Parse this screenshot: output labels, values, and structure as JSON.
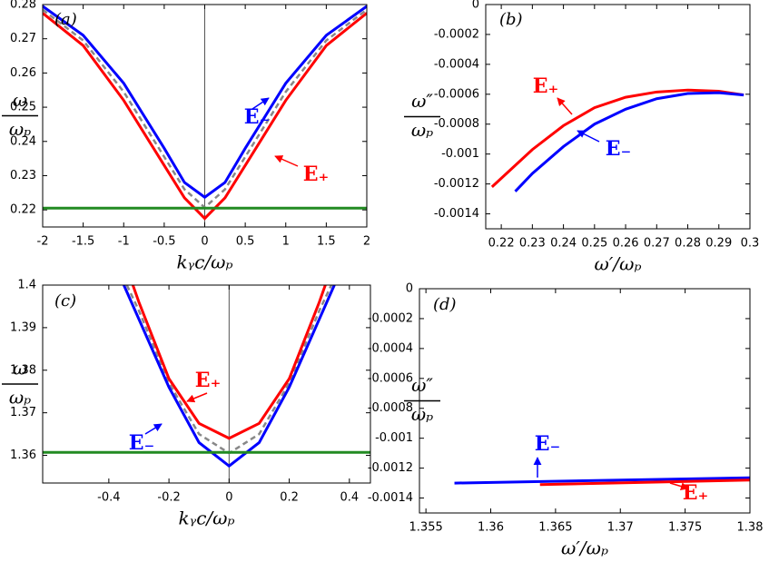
{
  "chart_data": [
    {
      "type": "line",
      "panel_label": "(a)",
      "xlabel": "kᵧc/ωₚ",
      "ylabel": {
        "numerator": "ω",
        "denominator": "ωₚ"
      },
      "xlim": [
        -2,
        2
      ],
      "ylim": [
        0.215,
        0.28
      ],
      "xticks": [
        -2,
        -1.5,
        -1,
        -0.5,
        0,
        0.5,
        1,
        1.5,
        2
      ],
      "yticks": [
        0.22,
        0.23,
        0.24,
        0.25,
        0.26,
        0.27,
        0.28
      ],
      "vline": 0,
      "series": [
        {
          "color": "#888888",
          "dashed": true,
          "x": [
            -2,
            -1.5,
            -1,
            -0.5,
            -0.25,
            0,
            0.25,
            0.5,
            1,
            1.5,
            2
          ],
          "values": [
            0.2785,
            0.2695,
            0.2545,
            0.2355,
            0.226,
            0.2207,
            0.226,
            0.2355,
            0.2545,
            0.2695,
            0.2785
          ]
        },
        {
          "name": "E₋",
          "color": "#0000ff",
          "x": [
            -2,
            -1.5,
            -1,
            -0.5,
            -0.25,
            0,
            0.25,
            0.5,
            1,
            1.5,
            2
          ],
          "values": [
            0.2795,
            0.271,
            0.257,
            0.238,
            0.228,
            0.2237,
            0.228,
            0.238,
            0.257,
            0.271,
            0.2795
          ]
        },
        {
          "name": "E₊",
          "color": "#ff0000",
          "x": [
            -2,
            -1.5,
            -1,
            -0.5,
            -0.25,
            0,
            0.25,
            0.5,
            1,
            1.5,
            2
          ],
          "values": [
            0.2775,
            0.268,
            0.252,
            0.233,
            0.2235,
            0.2175,
            0.2235,
            0.233,
            0.252,
            0.268,
            0.2775
          ]
        },
        {
          "color": "#228b22",
          "x": [
            -2,
            2
          ],
          "values": [
            0.2205,
            0.2205
          ]
        }
      ]
    },
    {
      "type": "line",
      "panel_label": "(b)",
      "xlabel": "ω′/ωₚ",
      "ylabel": {
        "numerator": "ω″",
        "denominator": "ωₚ"
      },
      "xlim": [
        0.215,
        0.3
      ],
      "ylim": [
        -0.0015,
        0
      ],
      "xticks": [
        0.22,
        0.23,
        0.24,
        0.25,
        0.26,
        0.27,
        0.28,
        0.29,
        0.3
      ],
      "yticks": [
        -0.0014,
        -0.0012,
        -0.001,
        -0.0008,
        -0.0006,
        -0.0004,
        -0.0002,
        0
      ],
      "series": [
        {
          "name": "E₊",
          "color": "#ff0000",
          "x": [
            0.217,
            0.23,
            0.24,
            0.25,
            0.26,
            0.27,
            0.28,
            0.29,
            0.298
          ],
          "values": [
            -0.00122,
            -0.00097,
            -0.00081,
            -0.00069,
            -0.00062,
            -0.000585,
            -0.000572,
            -0.00058,
            -0.000605
          ]
        },
        {
          "name": "E₋",
          "color": "#0000ff",
          "x": [
            0.2245,
            0.23,
            0.24,
            0.25,
            0.26,
            0.27,
            0.28,
            0.29,
            0.298
          ],
          "values": [
            -0.00125,
            -0.00113,
            -0.00095,
            -0.0008,
            -0.0007,
            -0.00063,
            -0.000595,
            -0.00059,
            -0.000605
          ]
        }
      ]
    },
    {
      "type": "line",
      "panel_label": "(c)",
      "xlabel": "kᵧc/ωₚ",
      "ylabel": {
        "numerator": "ω",
        "denominator": "ωₚ"
      },
      "xlim": [
        -0.62,
        0.47
      ],
      "ylim": [
        1.3535,
        1.4
      ],
      "xticks": [
        -0.4,
        -0.2,
        0,
        0.2,
        0.4
      ],
      "yticks": [
        1.36,
        1.37,
        1.38,
        1.39,
        1.4
      ],
      "vline": 0,
      "series": [
        {
          "color": "#888888",
          "dashed": true,
          "x": [
            -0.34,
            -0.3,
            -0.2,
            -0.1,
            0,
            0.1,
            0.2,
            0.3,
            0.34
          ],
          "values": [
            1.4,
            1.394,
            1.377,
            1.365,
            1.3605,
            1.365,
            1.377,
            1.394,
            1.4
          ]
        },
        {
          "name": "E₊",
          "color": "#ff0000",
          "x": [
            -0.32,
            -0.3,
            -0.2,
            -0.1,
            0,
            0.1,
            0.2,
            0.3,
            0.32
          ],
          "values": [
            1.4,
            1.396,
            1.378,
            1.3675,
            1.364,
            1.3675,
            1.378,
            1.396,
            1.4
          ]
        },
        {
          "name": "E₋",
          "color": "#0000ff",
          "x": [
            -0.35,
            -0.3,
            -0.2,
            -0.1,
            0,
            0.1,
            0.2,
            0.3,
            0.35
          ],
          "values": [
            1.4,
            1.392,
            1.376,
            1.363,
            1.3575,
            1.363,
            1.376,
            1.392,
            1.4
          ]
        },
        {
          "color": "#228b22",
          "x": [
            -0.62,
            0.47
          ],
          "values": [
            1.3607,
            1.3607
          ]
        }
      ]
    },
    {
      "type": "line",
      "panel_label": "(d)",
      "xlabel": "ω′/ωₚ",
      "ylabel": {
        "numerator": "ω″",
        "denominator": "ωₚ"
      },
      "xlim": [
        1.3545,
        1.38
      ],
      "ylim": [
        -0.0015,
        0
      ],
      "xticks": [
        1.355,
        1.36,
        1.365,
        1.37,
        1.375,
        1.38
      ],
      "yticks": [
        -0.0014,
        -0.0012,
        -0.001,
        -0.0008,
        -0.0006,
        -0.0004,
        -0.0002,
        0
      ],
      "series": [
        {
          "name": "E₋",
          "color": "#0000ff",
          "x": [
            1.3572,
            1.38
          ],
          "values": [
            -0.0013,
            -0.001265
          ]
        },
        {
          "name": "E₊",
          "color": "#ff0000",
          "x": [
            1.3638,
            1.38
          ],
          "values": [
            -0.00131,
            -0.00128
          ]
        }
      ]
    }
  ]
}
